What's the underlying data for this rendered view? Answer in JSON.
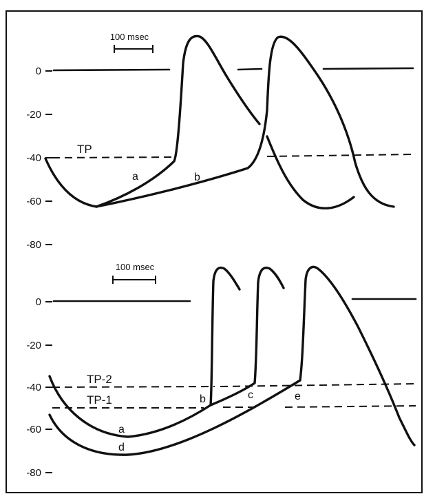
{
  "top_panel": {
    "scale_bar_label": "100 msec",
    "y_ticks": [
      "0",
      "-20",
      "-40",
      "-60",
      "-80"
    ],
    "threshold_label": "TP",
    "curve_labels": [
      "a",
      "b"
    ]
  },
  "bottom_panel": {
    "scale_bar_label": "100 msec",
    "y_ticks": [
      "0",
      "-20",
      "-40",
      "-60",
      "-80"
    ],
    "threshold_labels": [
      "TP-2",
      "TP-1"
    ],
    "curve_labels": [
      "a",
      "b",
      "c",
      "d",
      "e"
    ]
  }
}
